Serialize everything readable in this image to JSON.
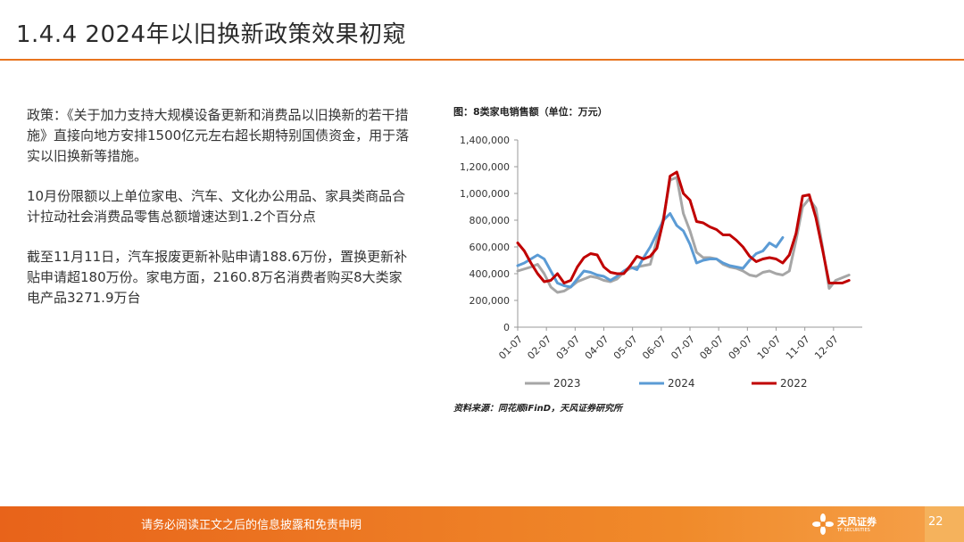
{
  "slide": {
    "title": "1.4.4 2024年以旧换新政策效果初窥",
    "paragraphs": [
      "政策：《关于加力支持大规模设备更新和消费品以旧换新的若干措施》直接向地方安排1500亿元左右超长期特别国债资金，用于落实以旧换新等措施。",
      "10月份限额以上单位家电、汽车、文化办公用品、家具类商品合计拉动社会消费品零售总额增速达到1.2个百分点",
      "截至11月11日，汽车报废更新补贴申请188.6万份，置换更新补贴申请超180万份。家电方面，2160.8万名消费者购买8大类家电产品3271.9万台"
    ],
    "chart_title": "图：8类家电销售额（单位：万元）",
    "source": "资料来源：同花顺iFinD，天风证券研究所"
  },
  "footer": {
    "disclaimer": "请务必阅读正文之后的信息披露和免责申明",
    "logo_cn": "天风证券",
    "logo_en": "TF SECURITIES",
    "page": "22"
  },
  "colors": {
    "accent": "#e8741e",
    "s2023": "#a6a6a6",
    "s2024": "#5b9bd5",
    "s2022": "#c00000"
  },
  "chart_data": {
    "type": "line",
    "y_ticks": [
      "1,400,000",
      "1,200,000",
      "1,000,000",
      "800,000",
      "600,000",
      "400,000",
      "200,000",
      "0"
    ],
    "ylim": [
      0,
      1400000
    ],
    "x_ticks": [
      "01-07",
      "02-07",
      "03-07",
      "04-07",
      "05-07",
      "06-07",
      "07-07",
      "08-07",
      "09-07",
      "10-07",
      "11-07",
      "12-07"
    ],
    "x_range": [
      0,
      52
    ],
    "series": [
      {
        "name": "2023",
        "color": "#a6a6a6",
        "values": [
          [
            0,
            420000
          ],
          [
            2,
            450000
          ],
          [
            3,
            470000
          ],
          [
            4,
            400000
          ],
          [
            5,
            300000
          ],
          [
            6,
            260000
          ],
          [
            7,
            270000
          ],
          [
            8,
            300000
          ],
          [
            9,
            340000
          ],
          [
            10,
            360000
          ],
          [
            11,
            380000
          ],
          [
            12,
            370000
          ],
          [
            13,
            350000
          ],
          [
            14,
            340000
          ],
          [
            15,
            360000
          ],
          [
            16,
            410000
          ],
          [
            17,
            440000
          ],
          [
            18,
            450000
          ],
          [
            19,
            460000
          ],
          [
            20,
            470000
          ],
          [
            21,
            650000
          ],
          [
            22,
            820000
          ],
          [
            23,
            1100000
          ],
          [
            24,
            1120000
          ],
          [
            25,
            850000
          ],
          [
            26,
            720000
          ],
          [
            27,
            560000
          ],
          [
            28,
            520000
          ],
          [
            29,
            520000
          ],
          [
            30,
            510000
          ],
          [
            31,
            470000
          ],
          [
            32,
            450000
          ],
          [
            33,
            440000
          ],
          [
            34,
            420000
          ],
          [
            35,
            390000
          ],
          [
            36,
            380000
          ],
          [
            37,
            410000
          ],
          [
            38,
            420000
          ],
          [
            39,
            400000
          ],
          [
            40,
            390000
          ],
          [
            41,
            420000
          ],
          [
            42,
            650000
          ],
          [
            43,
            900000
          ],
          [
            44,
            960000
          ],
          [
            45,
            890000
          ],
          [
            46,
            600000
          ],
          [
            47,
            290000
          ],
          [
            48,
            350000
          ],
          [
            49,
            370000
          ],
          [
            50,
            390000
          ]
        ]
      },
      {
        "name": "2024",
        "color": "#5b9bd5",
        "values": [
          [
            0,
            460000
          ],
          [
            1,
            480000
          ],
          [
            2,
            510000
          ],
          [
            3,
            540000
          ],
          [
            4,
            510000
          ],
          [
            5,
            420000
          ],
          [
            6,
            330000
          ],
          [
            7,
            310000
          ],
          [
            8,
            300000
          ],
          [
            9,
            360000
          ],
          [
            10,
            420000
          ],
          [
            11,
            410000
          ],
          [
            12,
            390000
          ],
          [
            13,
            380000
          ],
          [
            14,
            350000
          ],
          [
            15,
            380000
          ],
          [
            16,
            420000
          ],
          [
            17,
            450000
          ],
          [
            18,
            430000
          ],
          [
            19,
            520000
          ],
          [
            20,
            600000
          ],
          [
            21,
            700000
          ],
          [
            22,
            800000
          ],
          [
            23,
            850000
          ],
          [
            24,
            760000
          ],
          [
            25,
            720000
          ],
          [
            26,
            620000
          ],
          [
            27,
            480000
          ],
          [
            28,
            500000
          ],
          [
            29,
            510000
          ],
          [
            30,
            510000
          ],
          [
            31,
            480000
          ],
          [
            32,
            460000
          ],
          [
            33,
            450000
          ],
          [
            34,
            440000
          ],
          [
            35,
            500000
          ],
          [
            36,
            550000
          ],
          [
            37,
            570000
          ],
          [
            38,
            630000
          ],
          [
            39,
            600000
          ],
          [
            40,
            670000
          ]
        ]
      },
      {
        "name": "2022",
        "color": "#c00000",
        "values": [
          [
            0,
            630000
          ],
          [
            1,
            570000
          ],
          [
            2,
            480000
          ],
          [
            3,
            400000
          ],
          [
            4,
            340000
          ],
          [
            5,
            350000
          ],
          [
            6,
            400000
          ],
          [
            7,
            330000
          ],
          [
            8,
            350000
          ],
          [
            9,
            450000
          ],
          [
            10,
            520000
          ],
          [
            11,
            550000
          ],
          [
            12,
            540000
          ],
          [
            13,
            450000
          ],
          [
            14,
            410000
          ],
          [
            15,
            400000
          ],
          [
            16,
            400000
          ],
          [
            17,
            460000
          ],
          [
            18,
            530000
          ],
          [
            19,
            510000
          ],
          [
            20,
            530000
          ],
          [
            21,
            590000
          ],
          [
            22,
            800000
          ],
          [
            23,
            1130000
          ],
          [
            24,
            1160000
          ],
          [
            25,
            1000000
          ],
          [
            26,
            950000
          ],
          [
            27,
            790000
          ],
          [
            28,
            780000
          ],
          [
            29,
            750000
          ],
          [
            30,
            730000
          ],
          [
            31,
            690000
          ],
          [
            32,
            690000
          ],
          [
            33,
            650000
          ],
          [
            34,
            600000
          ],
          [
            35,
            530000
          ],
          [
            36,
            490000
          ],
          [
            37,
            510000
          ],
          [
            38,
            520000
          ],
          [
            39,
            510000
          ],
          [
            40,
            480000
          ],
          [
            41,
            540000
          ],
          [
            42,
            700000
          ],
          [
            43,
            980000
          ],
          [
            44,
            990000
          ],
          [
            45,
            820000
          ],
          [
            46,
            580000
          ],
          [
            47,
            330000
          ],
          [
            48,
            330000
          ],
          [
            49,
            330000
          ],
          [
            50,
            350000
          ]
        ]
      }
    ],
    "legend": [
      "2023",
      "2024",
      "2022"
    ],
    "legend_position": "bottom"
  }
}
